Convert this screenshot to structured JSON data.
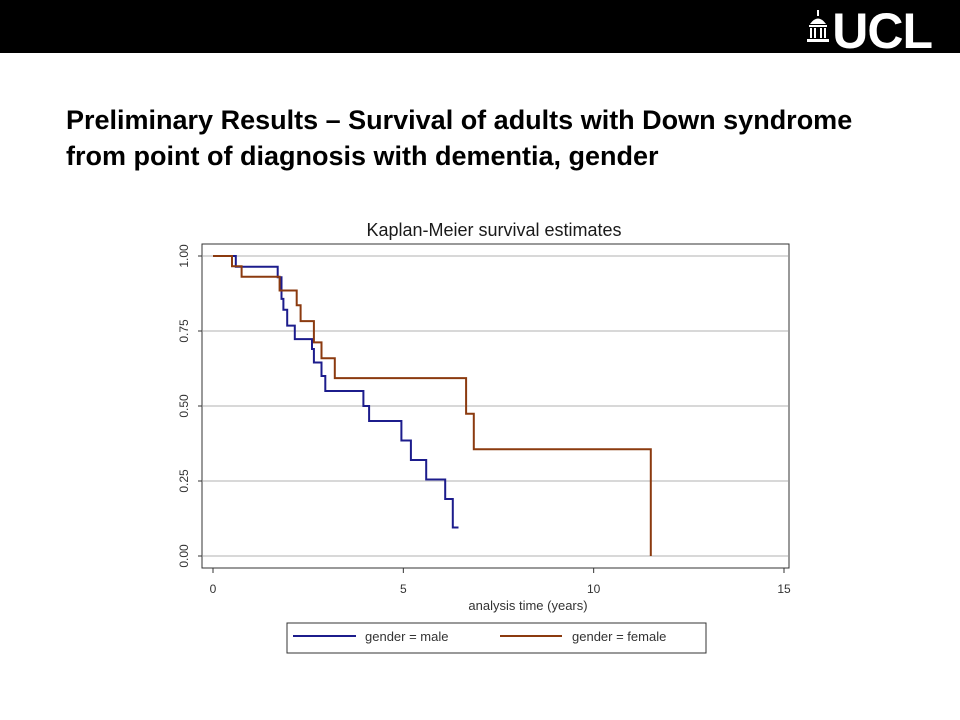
{
  "slide": {
    "title": "Preliminary Results – Survival of adults with Down syndrome from point of diagnosis with dementia, gender",
    "logo_text": "UCL"
  },
  "chart_data": {
    "type": "line",
    "subtype": "kaplan-meier step",
    "title": "Kaplan-Meier survival estimates",
    "xlabel": "analysis time (years)",
    "ylabel": "",
    "xlim": [
      0,
      15
    ],
    "ylim": [
      0,
      1
    ],
    "x_ticks": [
      "0",
      "5",
      "10",
      "15"
    ],
    "y_ticks": [
      "0.00",
      "0.25",
      "0.50",
      "0.75",
      "1.00"
    ],
    "grid": "horizontal",
    "legend_position": "bottom",
    "series": [
      {
        "name": "gender = male",
        "color": "#1c1c8c",
        "points": [
          [
            0,
            1.0
          ],
          [
            0.6,
            1.0
          ],
          [
            0.6,
            0.964
          ],
          [
            1.7,
            0.964
          ],
          [
            1.7,
            0.929
          ],
          [
            1.8,
            0.929
          ],
          [
            1.8,
            0.857
          ],
          [
            1.85,
            0.857
          ],
          [
            1.85,
            0.821
          ],
          [
            1.95,
            0.821
          ],
          [
            1.95,
            0.768
          ],
          [
            2.15,
            0.768
          ],
          [
            2.15,
            0.723
          ],
          [
            2.6,
            0.723
          ],
          [
            2.6,
            0.69
          ],
          [
            2.65,
            0.69
          ],
          [
            2.65,
            0.645
          ],
          [
            2.85,
            0.645
          ],
          [
            2.85,
            0.6
          ],
          [
            2.95,
            0.6
          ],
          [
            2.95,
            0.55
          ],
          [
            3.95,
            0.55
          ],
          [
            3.95,
            0.5
          ],
          [
            4.1,
            0.5
          ],
          [
            4.1,
            0.45
          ],
          [
            4.95,
            0.45
          ],
          [
            4.95,
            0.385
          ],
          [
            5.2,
            0.385
          ],
          [
            5.2,
            0.32
          ],
          [
            5.6,
            0.32
          ],
          [
            5.6,
            0.255
          ],
          [
            6.1,
            0.255
          ],
          [
            6.1,
            0.19
          ],
          [
            6.3,
            0.19
          ],
          [
            6.3,
            0.095
          ],
          [
            6.45,
            0.095
          ]
        ]
      },
      {
        "name": "gender = female",
        "color": "#8b3a0f",
        "points": [
          [
            0,
            1.0
          ],
          [
            0.5,
            1.0
          ],
          [
            0.5,
            0.966
          ],
          [
            0.75,
            0.966
          ],
          [
            0.75,
            0.931
          ],
          [
            1.75,
            0.931
          ],
          [
            1.75,
            0.885
          ],
          [
            2.2,
            0.885
          ],
          [
            2.2,
            0.836
          ],
          [
            2.3,
            0.836
          ],
          [
            2.3,
            0.783
          ],
          [
            2.65,
            0.783
          ],
          [
            2.65,
            0.712
          ],
          [
            2.85,
            0.712
          ],
          [
            2.85,
            0.659
          ],
          [
            3.2,
            0.659
          ],
          [
            3.2,
            0.593
          ],
          [
            6.65,
            0.593
          ],
          [
            6.65,
            0.474
          ],
          [
            6.85,
            0.474
          ],
          [
            6.85,
            0.356
          ],
          [
            11.5,
            0.356
          ],
          [
            11.5,
            0.0
          ]
        ]
      }
    ]
  }
}
